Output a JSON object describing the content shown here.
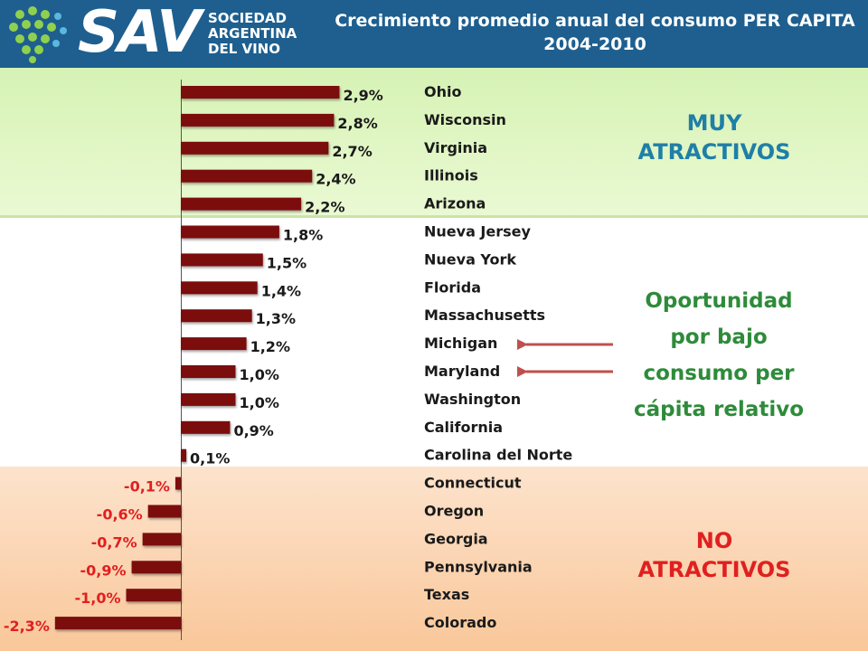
{
  "header": {
    "logo_short": "SAV",
    "logo_line1": "SOCIEDAD",
    "logo_line2": "ARGENTINA",
    "logo_line3": "DEL VINO",
    "title_line1": "Crecimiento promedio anual del consumo PER CAPITA",
    "title_line2": "2004-2010"
  },
  "colors": {
    "header_bg": "#1e5f8f",
    "bar": "#7b0a0a",
    "positive_label": "#1a1a1a",
    "negative_label": "#e02020",
    "zone_top": "#1f7fa6",
    "zone_mid": "#2e8b3a",
    "zone_bot": "#e02020",
    "arrow": "#c0504d"
  },
  "zones": {
    "top_line1": "MUY",
    "top_line2": "ATRACTIVOS",
    "mid_line1": "Oportunidad",
    "mid_line2": "por bajo",
    "mid_line3": "consumo per",
    "mid_line4": "cápita relativo",
    "bot_line1": "NO",
    "bot_line2": "ATRACTIVOS"
  },
  "chart_data": {
    "type": "bar",
    "orientation": "horizontal",
    "title": "Crecimiento promedio anual del consumo PER CAPITA 2004-2010",
    "categories": [
      "Ohio",
      "Wisconsin",
      "Virginia",
      "Illinois",
      "Arizona",
      "Nueva Jersey",
      "Nueva York",
      "Florida",
      "Massachusetts",
      "Michigan",
      "Maryland",
      "Washington",
      "California",
      "Carolina del Norte",
      "Connecticut",
      "Oregon",
      "Georgia",
      "Pennsylvania",
      "Texas",
      "Colorado"
    ],
    "values": [
      2.9,
      2.8,
      2.7,
      2.4,
      2.2,
      1.8,
      1.5,
      1.4,
      1.3,
      1.2,
      1.0,
      1.0,
      0.9,
      0.1,
      -0.1,
      -0.6,
      -0.7,
      -0.9,
      -1.0,
      -2.3
    ],
    "data_labels": [
      "2,9%",
      "2,8%",
      "2,7%",
      "2,4%",
      "2,2%",
      "1,8%",
      "1,5%",
      "1,4%",
      "1,3%",
      "1,2%",
      "1,0%",
      "1,0%",
      "0,9%",
      "0,1%",
      "-0,1%",
      "-0,6%",
      "-0,7%",
      "-0,9%",
      "-1,0%",
      "-2,3%"
    ],
    "highlighted": [
      "Michigan",
      "Maryland"
    ],
    "xlim": [
      -2.3,
      2.9
    ],
    "grid": false,
    "legend": "none"
  }
}
